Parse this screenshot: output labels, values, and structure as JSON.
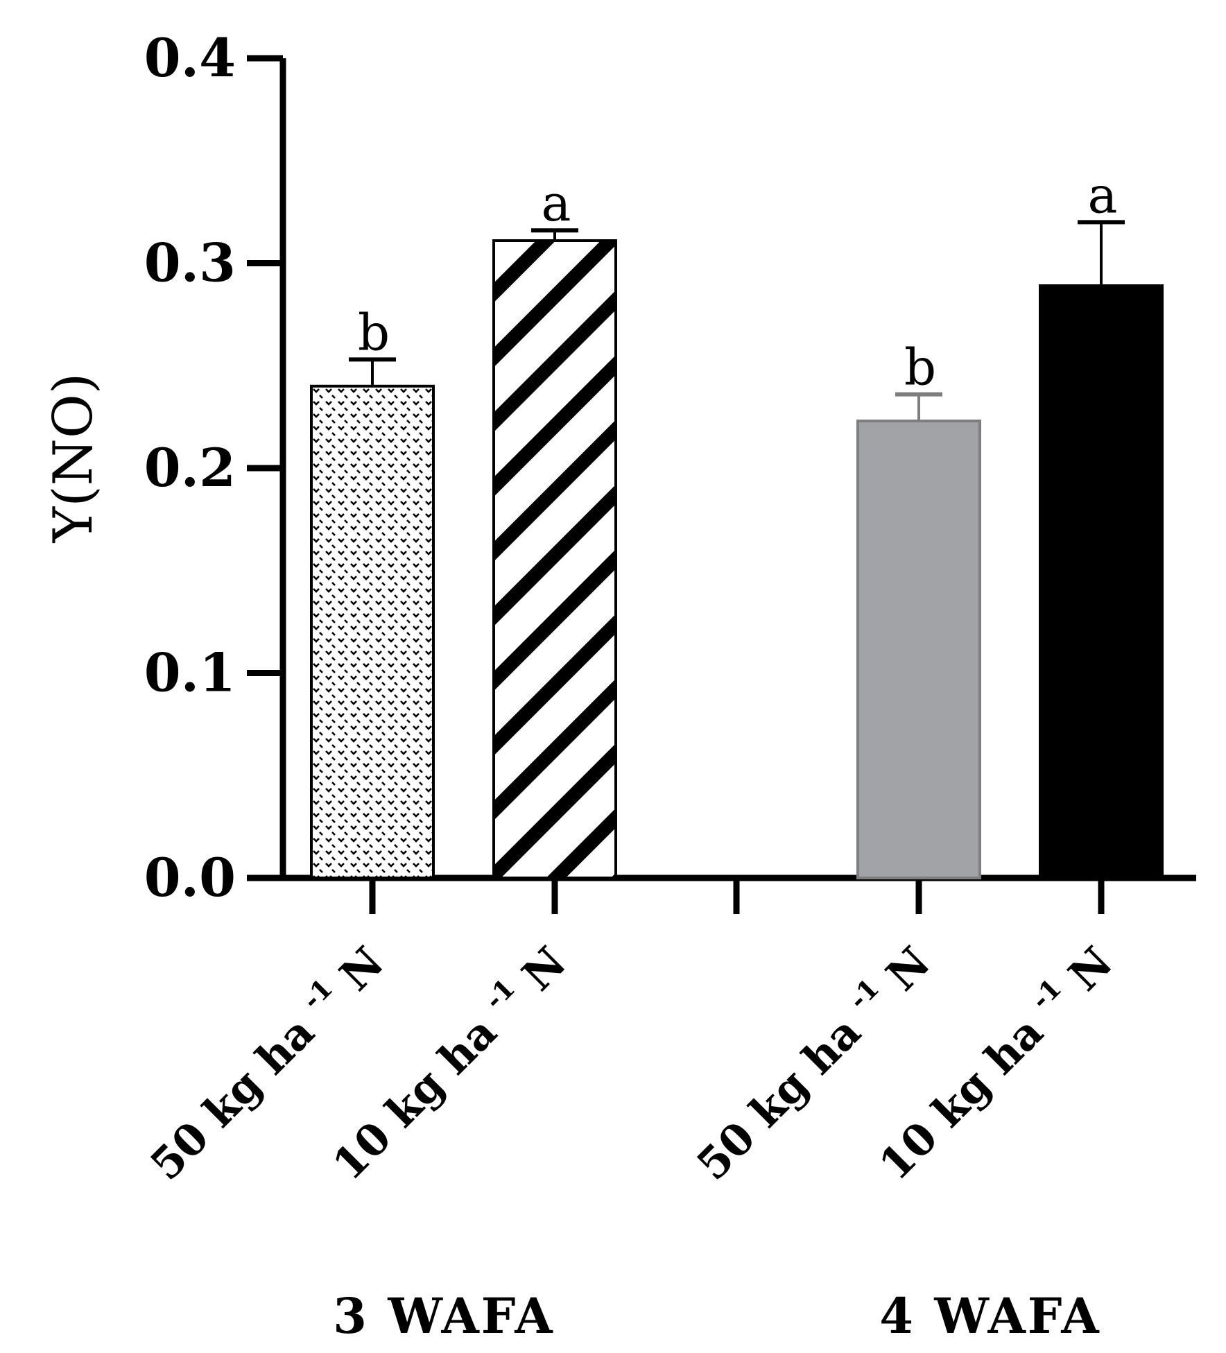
{
  "chart_data": {
    "type": "bar",
    "ylabel": "Y(NO)",
    "ylim": [
      0,
      0.4
    ],
    "yticks": [
      "0.0",
      "0.1",
      "0.2",
      "0.3",
      "0.4"
    ],
    "grid": false,
    "bars": [
      {
        "group": "3 WAFA",
        "category": "50 kg ha -1 N",
        "value": 0.24,
        "error": 0.013,
        "letter": "b",
        "fill": "dotted"
      },
      {
        "group": "3 WAFA",
        "category": "10 kg ha -1 N",
        "value": 0.311,
        "error": 0.005,
        "letter": "a",
        "fill": "hatched"
      },
      {
        "group": "4 WAFA",
        "category": "50 kg ha -1 N",
        "value": 0.223,
        "error": 0.013,
        "letter": "b",
        "fill": "grey"
      },
      {
        "group": "4 WAFA",
        "category": "10 kg ha -1 N",
        "value": 0.289,
        "error": 0.031,
        "letter": "a",
        "fill": "black"
      }
    ],
    "groups": [
      "3 WAFA",
      "4 WAFA"
    ]
  },
  "colors": {
    "axis": "#000000",
    "grey_bar": "#a2a3a6",
    "grey_edge": "#7d7e80",
    "black_bar": "#000000"
  }
}
